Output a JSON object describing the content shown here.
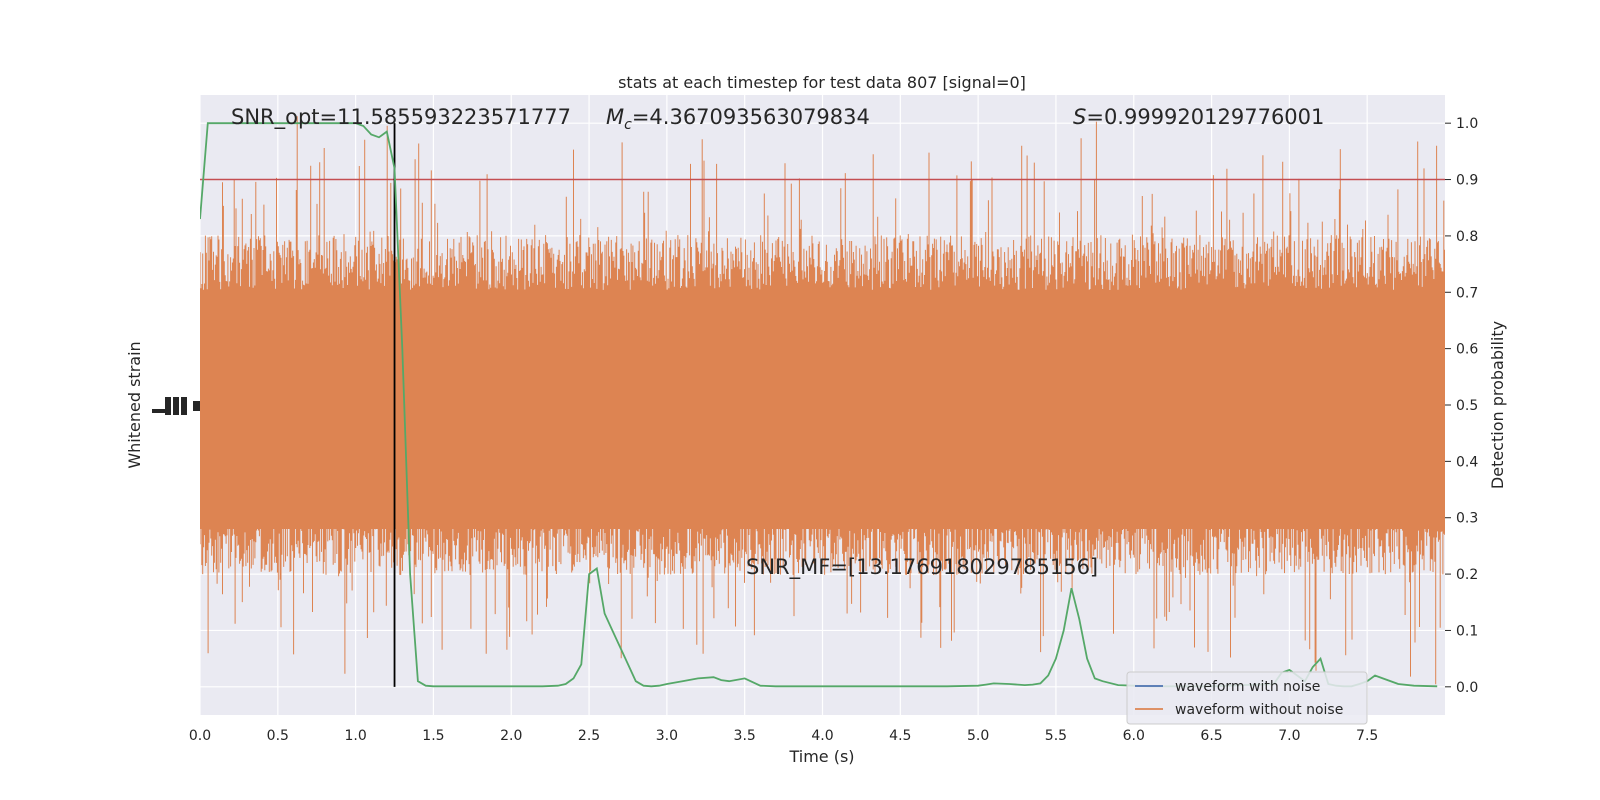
{
  "chart_data": {
    "type": "line",
    "title": "stats at each timestep for test data 807 [signal=0]",
    "xlabel": "Time (s)",
    "ylabel_left": "Whitened strain",
    "ylabel_right": "Detection probability",
    "xlim": [
      0,
      8.0
    ],
    "ylim_right": [
      -0.05,
      1.05
    ],
    "x_ticks": [
      "0.0",
      "0.5",
      "1.0",
      "1.5",
      "2.0",
      "2.5",
      "3.0",
      "3.5",
      "4.0",
      "4.5",
      "5.0",
      "5.5",
      "6.0",
      "6.5",
      "7.0",
      "7.5"
    ],
    "x_tick_values": [
      0,
      0.5,
      1.0,
      1.5,
      2.0,
      2.5,
      3.0,
      3.5,
      4.0,
      4.5,
      5.0,
      5.5,
      6.0,
      6.5,
      7.0,
      7.5
    ],
    "y_right_ticks": [
      "0.0",
      "0.1",
      "0.2",
      "0.3",
      "0.4",
      "0.5",
      "0.6",
      "0.7",
      "0.8",
      "0.9",
      "1.0"
    ],
    "y_right_tick_values": [
      0,
      0.1,
      0.2,
      0.3,
      0.4,
      0.5,
      0.6,
      0.7,
      0.8,
      0.9,
      1.0
    ],
    "grid": true,
    "legend_position": "lower-right",
    "annotations": {
      "snr_opt": "SNR_opt=11.585593223571777",
      "mc_symbol": "M",
      "mc_sub": "c",
      "mc_value": "=4.367093563079834",
      "s_symbol": "S",
      "s_value": "=0.999920129776001",
      "snr_mf": "SNR_MF=[13.176918029785156]"
    },
    "threshold": 0.9,
    "marker_time": 1.25,
    "series": [
      {
        "name": "waveform with noise",
        "color": "#4c72b0"
      },
      {
        "name": "waveform without noise",
        "color": "#dd8452"
      }
    ],
    "detection_probability": {
      "color": "#55a868",
      "x": [
        0.0,
        0.05,
        0.1,
        0.15,
        0.2,
        0.3,
        0.4,
        0.5,
        0.6,
        0.7,
        0.8,
        0.9,
        1.0,
        1.05,
        1.1,
        1.15,
        1.2,
        1.25,
        1.3,
        1.35,
        1.4,
        1.45,
        1.5,
        1.6,
        1.7,
        1.8,
        1.9,
        2.0,
        2.1,
        2.2,
        2.3,
        2.35,
        2.4,
        2.45,
        2.5,
        2.55,
        2.6,
        2.65,
        2.7,
        2.75,
        2.8,
        2.85,
        2.9,
        2.95,
        3.0,
        3.1,
        3.2,
        3.3,
        3.35,
        3.4,
        3.5,
        3.6,
        3.7,
        3.8,
        3.9,
        4.0,
        4.2,
        4.4,
        4.6,
        4.8,
        5.0,
        5.05,
        5.1,
        5.2,
        5.3,
        5.35,
        5.4,
        5.45,
        5.5,
        5.55,
        5.6,
        5.65,
        5.7,
        5.75,
        5.8,
        5.9,
        6.0,
        6.1,
        6.2,
        6.3,
        6.4,
        6.5,
        6.6,
        6.7,
        6.8,
        6.9,
        6.95,
        7.0,
        7.05,
        7.1,
        7.15,
        7.2,
        7.25,
        7.3,
        7.35,
        7.4,
        7.45,
        7.5,
        7.55,
        7.6,
        7.7,
        7.8,
        7.95
      ],
      "y": [
        0.83,
        1.0,
        1.0,
        1.0,
        1.0,
        1.0,
        1.0,
        1.0,
        1.0,
        1.0,
        1.0,
        1.0,
        1.0,
        0.995,
        0.98,
        0.975,
        0.985,
        0.92,
        0.6,
        0.2,
        0.01,
        0.002,
        0.001,
        0.001,
        0.001,
        0.001,
        0.001,
        0.001,
        0.001,
        0.001,
        0.002,
        0.005,
        0.015,
        0.04,
        0.2,
        0.21,
        0.13,
        0.1,
        0.07,
        0.04,
        0.01,
        0.002,
        0.001,
        0.002,
        0.005,
        0.01,
        0.015,
        0.017,
        0.012,
        0.01,
        0.015,
        0.002,
        0.001,
        0.001,
        0.001,
        0.001,
        0.001,
        0.001,
        0.001,
        0.001,
        0.002,
        0.004,
        0.006,
        0.005,
        0.003,
        0.004,
        0.006,
        0.02,
        0.05,
        0.1,
        0.175,
        0.12,
        0.05,
        0.015,
        0.01,
        0.003,
        0.002,
        0.001,
        0.001,
        0.001,
        0.001,
        0.001,
        0.002,
        0.003,
        0.004,
        0.005,
        0.025,
        0.03,
        0.02,
        0.01,
        0.035,
        0.05,
        0.005,
        0.002,
        0.001,
        0.001,
        0.005,
        0.01,
        0.02,
        0.015,
        0.005,
        0.002,
        0.001
      ]
    }
  }
}
